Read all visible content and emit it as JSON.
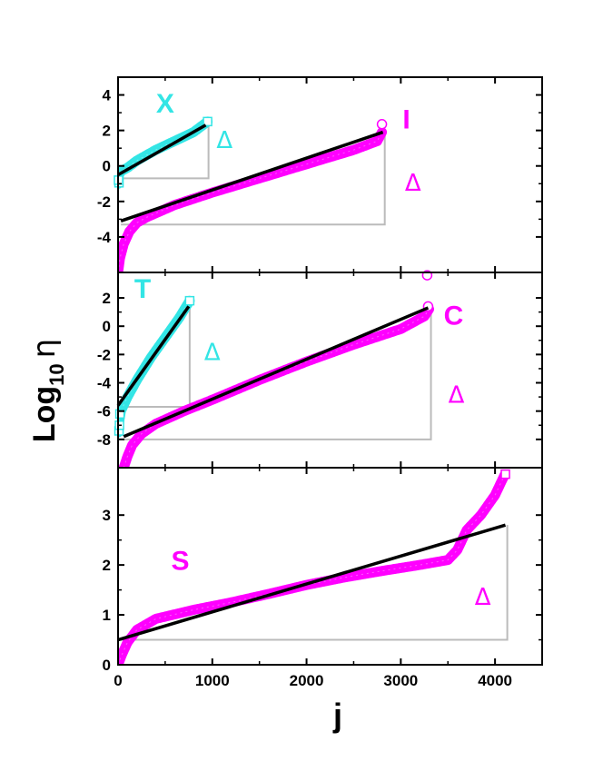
{
  "chart_data": {
    "type": "scatter",
    "xlabel": "j",
    "ylabel_main": "Log",
    "ylabel_sub": "10",
    "ylabel_sym": "η",
    "xlim": [
      0,
      4500
    ],
    "xticks": [
      {
        "v": 0,
        "label": "0"
      },
      {
        "v": 1000,
        "label": "1000"
      },
      {
        "v": 2000,
        "label": "2000"
      },
      {
        "v": 3000,
        "label": "3000"
      },
      {
        "v": 4000,
        "label": "4000"
      }
    ],
    "colors": {
      "cyan": "#33e5e5",
      "magenta": "#ff00ff",
      "fit": "#000000",
      "guide": "#bbbbbb"
    },
    "panels": [
      {
        "id": "top",
        "ylim": [
          -6,
          5
        ],
        "yticks": [
          {
            "v": -4,
            "label": "-4"
          },
          {
            "v": -2,
            "label": "-2"
          },
          {
            "v": 0,
            "label": "0"
          },
          {
            "v": 2,
            "label": "2"
          },
          {
            "v": 4,
            "label": "4"
          }
        ],
        "series": [
          {
            "name": "X",
            "color": "cyan",
            "marker": "square",
            "label_pos": [
              500,
              3.0
            ],
            "delta_pos": [
              1130,
              1.0
            ],
            "curve": [
              [
                0,
                -1.0
              ],
              [
                5,
                -0.75
              ],
              [
                10,
                -0.5
              ],
              [
                30,
                -0.3
              ],
              [
                100,
                -0.1
              ],
              [
                200,
                0.3
              ],
              [
                400,
                0.9
              ],
              [
                600,
                1.4
              ],
              [
                800,
                1.9
              ],
              [
                950,
                2.5
              ]
            ],
            "fit": [
              [
                0,
                -0.5
              ],
              [
                930,
                2.3
              ]
            ],
            "guide_x": 960,
            "guide_y": -0.7,
            "markers": [
              [
                10,
                -0.95
              ],
              [
                5,
                -0.8
              ],
              [
                950,
                2.5
              ]
            ]
          },
          {
            "name": "I",
            "color": "magenta",
            "marker": "circle",
            "label_pos": [
              3060,
              2.1
            ],
            "delta_pos": [
              3130,
              -1.4
            ],
            "curve": [
              [
                0,
                -6.0
              ],
              [
                20,
                -5.2
              ],
              [
                60,
                -4.4
              ],
              [
                120,
                -3.7
              ],
              [
                200,
                -3.2
              ],
              [
                300,
                -2.9
              ],
              [
                600,
                -2.2
              ],
              [
                1000,
                -1.5
              ],
              [
                1500,
                -0.7
              ],
              [
                2000,
                0.1
              ],
              [
                2500,
                0.9
              ],
              [
                2750,
                1.4
              ],
              [
                2800,
                1.9
              ]
            ],
            "fit": [
              [
                30,
                -3.1
              ],
              [
                2810,
                1.9
              ]
            ],
            "guide_x": 2830,
            "guide_y": -3.3,
            "markers": [
              [
                2800,
                2.35
              ]
            ]
          }
        ]
      },
      {
        "id": "middle",
        "ylim": [
          -10,
          3.8
        ],
        "yticks": [
          {
            "v": -8,
            "label": "-8"
          },
          {
            "v": -6,
            "label": "-6"
          },
          {
            "v": -4,
            "label": "-4"
          },
          {
            "v": -2,
            "label": "-2"
          },
          {
            "v": 0,
            "label": "0"
          },
          {
            "v": 2,
            "label": "2"
          }
        ],
        "series": [
          {
            "name": "T",
            "color": "cyan",
            "marker": "square",
            "label_pos": [
              260,
              2.0
            ],
            "delta_pos": [
              1000,
              -2.4
            ],
            "curve": [
              [
                0,
                -7.5
              ],
              [
                10,
                -6.8
              ],
              [
                30,
                -6.0
              ],
              [
                100,
                -5.0
              ],
              [
                200,
                -3.8
              ],
              [
                350,
                -2.2
              ],
              [
                500,
                -0.8
              ],
              [
                650,
                0.6
              ],
              [
                760,
                1.8
              ]
            ],
            "fit": [
              [
                0,
                -5.6
              ],
              [
                750,
                1.4
              ]
            ],
            "guide_x": 760,
            "guide_y": -5.7,
            "markers": [
              [
                10,
                -7.4
              ],
              [
                15,
                -7.0
              ],
              [
                20,
                -6.2
              ],
              [
                760,
                1.8
              ]
            ]
          },
          {
            "name": "C",
            "color": "magenta",
            "marker": "circle",
            "label_pos": [
              3560,
              0.1
            ],
            "delta_pos": [
              3590,
              -5.4
            ],
            "curve": [
              [
                60,
                -10.0
              ],
              [
                100,
                -9.2
              ],
              [
                150,
                -8.4
              ],
              [
                250,
                -7.6
              ],
              [
                400,
                -6.9
              ],
              [
                700,
                -6.0
              ],
              [
                1000,
                -5.2
              ],
              [
                1500,
                -3.8
              ],
              [
                2000,
                -2.5
              ],
              [
                2500,
                -1.3
              ],
              [
                3000,
                -0.2
              ],
              [
                3250,
                0.7
              ],
              [
                3300,
                1.2
              ]
            ],
            "fit": [
              [
                60,
                -7.8
              ],
              [
                3290,
                1.3
              ]
            ],
            "guide_x": 3320,
            "guide_y": -8.0,
            "markers": [
              [
                3280,
                3.6
              ],
              [
                3290,
                1.4
              ]
            ]
          }
        ]
      },
      {
        "id": "bottom",
        "ylim": [
          0,
          3.95
        ],
        "yticks": [
          {
            "v": 0,
            "label": "0"
          },
          {
            "v": 1,
            "label": "1"
          },
          {
            "v": 2,
            "label": "2"
          },
          {
            "v": 3,
            "label": "3"
          }
        ],
        "series": [
          {
            "name": "S",
            "color": "magenta",
            "marker": "square",
            "label_pos": [
              660,
              1.9
            ],
            "delta_pos": [
              3870,
              1.2
            ],
            "curve": [
              [
                0,
                0.0
              ],
              [
                40,
                0.2
              ],
              [
                100,
                0.45
              ],
              [
                200,
                0.7
              ],
              [
                400,
                0.92
              ],
              [
                800,
                1.1
              ],
              [
                1200,
                1.25
              ],
              [
                1600,
                1.42
              ],
              [
                2000,
                1.6
              ],
              [
                2400,
                1.75
              ],
              [
                2800,
                1.88
              ],
              [
                3200,
                2.0
              ],
              [
                3500,
                2.1
              ],
              [
                3600,
                2.3
              ],
              [
                3700,
                2.7
              ],
              [
                3850,
                3.0
              ],
              [
                4000,
                3.4
              ],
              [
                4100,
                3.8
              ]
            ],
            "fit": [
              [
                0,
                0.5
              ],
              [
                4110,
                2.8
              ]
            ],
            "guide_x": 4130,
            "guide_y": 0.5,
            "markers": [
              [
                4110,
                3.82
              ]
            ]
          }
        ]
      }
    ],
    "delta_text": "Δ"
  }
}
